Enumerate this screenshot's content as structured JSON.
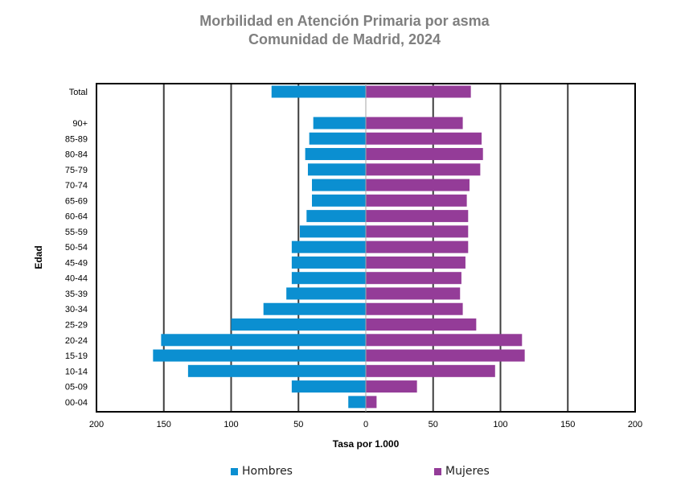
{
  "chart_data": {
    "type": "bar",
    "orientation": "horizontal-diverging",
    "title": "Morbilidad en Atención Primaria por asma",
    "subtitle": "Comunidad de Madrid, 2024",
    "xlabel": "Tasa por 1.000",
    "ylabel": "Edad",
    "xlim": [
      -200,
      200
    ],
    "x_tick_labels": [
      "200",
      "150",
      "100",
      "50",
      "0",
      "50",
      "100",
      "150",
      "200"
    ],
    "categories": [
      "Total",
      "90+",
      "85-89",
      "80-84",
      "75-79",
      "70-74",
      "65-69",
      "60-64",
      "55-59",
      "50-54",
      "45-49",
      "40-44",
      "35-39",
      "30-34",
      "25-29",
      "20-24",
      "15-19",
      "10-14",
      "05-09",
      "00-04"
    ],
    "grid": true,
    "legend_position": "bottom",
    "series": [
      {
        "name": "Hombres",
        "side": "left",
        "color": "#0b8fd1",
        "values": [
          70,
          39,
          42,
          45,
          43,
          40,
          40,
          44,
          49,
          55,
          55,
          55,
          59,
          76,
          100,
          152,
          158,
          132,
          55,
          13
        ]
      },
      {
        "name": "Mujeres",
        "side": "right",
        "color": "#943c98",
        "values": [
          78,
          72,
          86,
          87,
          85,
          77,
          75,
          76,
          76,
          76,
          74,
          71,
          70,
          72,
          82,
          116,
          118,
          96,
          38,
          8
        ]
      }
    ]
  }
}
